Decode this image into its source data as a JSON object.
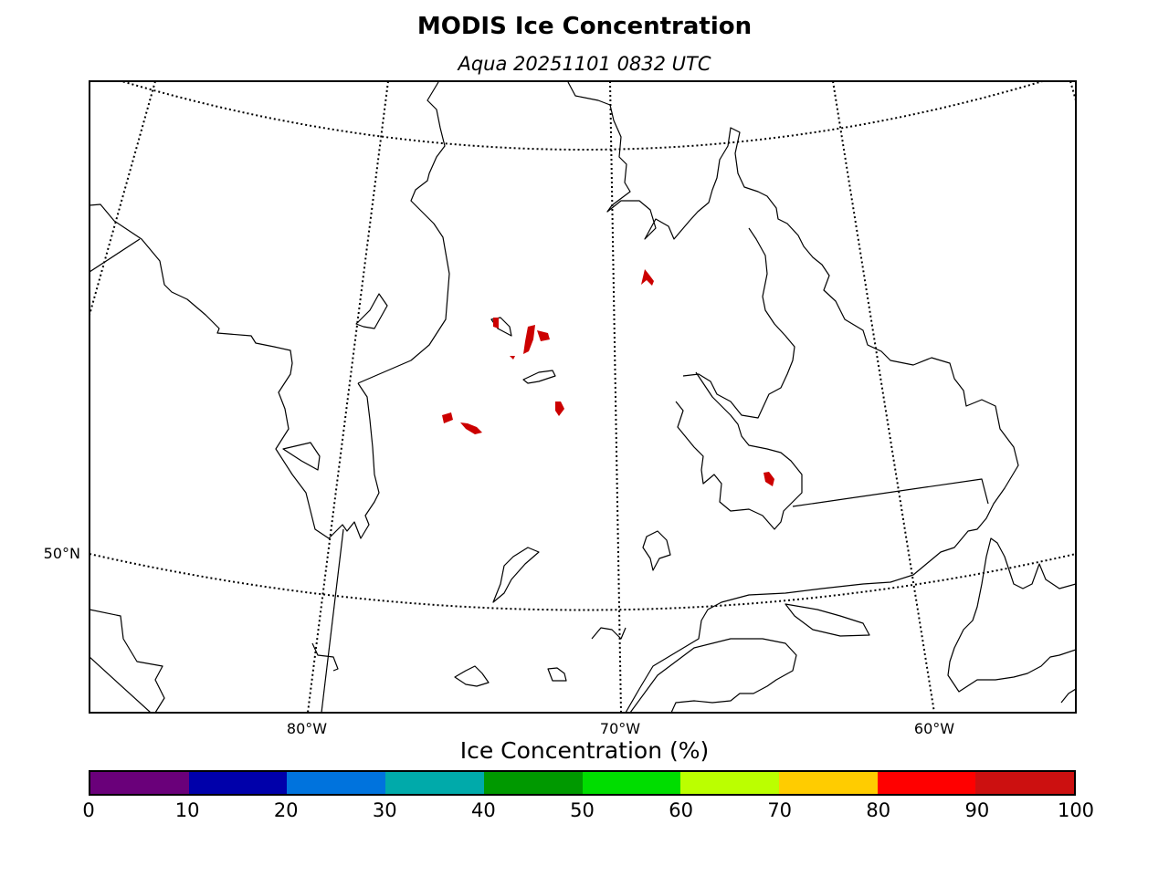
{
  "title": "MODIS Ice Concentration",
  "subtitle": "Aqua 20251101 0832 UTC",
  "map": {
    "longitude_labels": [
      "80°W",
      "70°W",
      "60°W"
    ],
    "latitude_labels": [
      "50°N"
    ],
    "ice_fill_color": "#cc0000"
  },
  "colorbar": {
    "label": "Ice Concentration (%)",
    "ticks": [
      "0",
      "10",
      "20",
      "30",
      "40",
      "50",
      "60",
      "70",
      "80",
      "90",
      "100"
    ],
    "colors": [
      "#6a007a",
      "#0000aa",
      "#0073dd",
      "#00aaaa",
      "#009900",
      "#00dd00",
      "#bbff00",
      "#ffcc00",
      "#ff0000",
      "#cc1010"
    ]
  }
}
